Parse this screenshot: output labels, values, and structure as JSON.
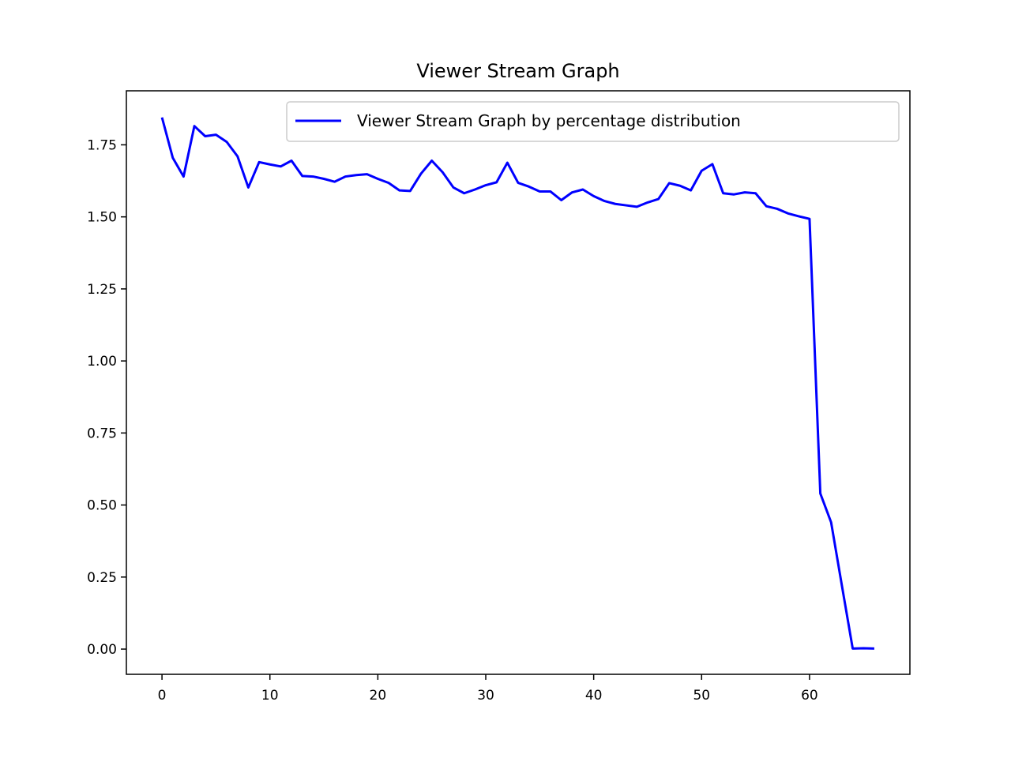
{
  "chart_data": {
    "type": "line",
    "title": "Viewer Stream Graph",
    "xlabel": "",
    "ylabel": "",
    "xlim": [
      -3.3,
      69.3
    ],
    "ylim": [
      -0.0875,
      1.9375
    ],
    "x_ticks": [
      0,
      10,
      20,
      30,
      40,
      50,
      60
    ],
    "x_tick_labels": [
      "0",
      "10",
      "20",
      "30",
      "40",
      "50",
      "60"
    ],
    "y_ticks": [
      0.0,
      0.25,
      0.5,
      0.75,
      1.0,
      1.25,
      1.5,
      1.75
    ],
    "y_tick_labels": [
      "0.00",
      "0.25",
      "0.50",
      "0.75",
      "1.00",
      "1.25",
      "1.50",
      "1.75"
    ],
    "grid": false,
    "legend": {
      "placement": "upper-right"
    },
    "series": [
      {
        "name": "Viewer Stream Graph by percentage distribution",
        "color": "#0000ff",
        "x": [
          0,
          1,
          2,
          3,
          4,
          5,
          6,
          7,
          8,
          9,
          10,
          11,
          12,
          13,
          14,
          15,
          16,
          17,
          18,
          19,
          20,
          21,
          22,
          23,
          24,
          25,
          26,
          27,
          28,
          29,
          30,
          31,
          32,
          33,
          34,
          35,
          36,
          37,
          38,
          39,
          40,
          41,
          42,
          43,
          44,
          45,
          46,
          47,
          48,
          49,
          50,
          51,
          52,
          53,
          54,
          55,
          56,
          57,
          58,
          59,
          60,
          61,
          62,
          63,
          64,
          65,
          66
        ],
        "values": [
          1.845,
          1.705,
          1.64,
          1.815,
          1.78,
          1.785,
          1.76,
          1.71,
          1.602,
          1.69,
          1.682,
          1.675,
          1.695,
          1.642,
          1.64,
          1.632,
          1.622,
          1.64,
          1.645,
          1.648,
          1.632,
          1.618,
          1.592,
          1.59,
          1.65,
          1.695,
          1.655,
          1.602,
          1.582,
          1.595,
          1.61,
          1.62,
          1.688,
          1.618,
          1.605,
          1.588,
          1.588,
          1.558,
          1.585,
          1.595,
          1.572,
          1.555,
          1.545,
          1.54,
          1.535,
          1.55,
          1.562,
          1.617,
          1.608,
          1.592,
          1.66,
          1.683,
          1.582,
          1.578,
          1.585,
          1.582,
          1.537,
          1.528,
          1.512,
          1.502,
          1.493,
          0.54,
          0.44,
          0.22,
          0.002,
          0.003,
          0.002
        ]
      }
    ]
  }
}
